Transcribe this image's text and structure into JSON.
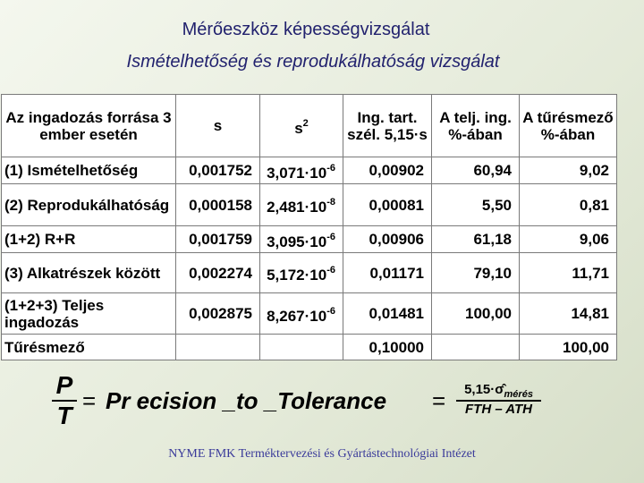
{
  "header": {
    "title": "Mérőeszköz képességvizsgálat",
    "subtitle": "Ismételhetőség és reprodukálhatóság vizsgálat"
  },
  "table": {
    "columns": [
      "Az ingadozás forrása 3 ember esetén",
      "s",
      {
        "base": "s",
        "exp": "2"
      },
      "Ing. tart. szél. 5,15·s",
      "A telj. ing. %-ában",
      "A tűrésmező %-ában"
    ],
    "rows": [
      [
        "(1) Ismételhetőség",
        "0,001752",
        {
          "base": "3,071·10",
          "exp": "-6"
        },
        "0,00902",
        "60,94",
        "9,02"
      ],
      [
        "(2) Reprodukálhatóság",
        "0,000158",
        {
          "base": "2,481·10",
          "exp": "-8"
        },
        "0,00081",
        "5,50",
        "0,81"
      ],
      [
        "(1+2) R+R",
        "0,001759",
        {
          "base": "3,095·10",
          "exp": "-6"
        },
        "0,00906",
        "61,18",
        "9,06"
      ],
      [
        "(3) Alkatrészek között",
        "0,002274",
        {
          "base": "5,172·10",
          "exp": "-6"
        },
        "0,01171",
        "79,10",
        "11,71"
      ],
      [
        "(1+2+3) Teljes ingadozás",
        "0,002875",
        {
          "base": "8,267·10",
          "exp": "-6"
        },
        "0,01481",
        "100,00",
        "14,81"
      ],
      [
        "Tűrésmező",
        null,
        null,
        "0,10000",
        null,
        "100,00"
      ]
    ]
  },
  "formula": {
    "lhs_numerator": "P",
    "lhs_denominator": "T",
    "equals": "=",
    "middle": "Pr ecision _to _Tolerance",
    "rhs_numerator": "5,15·σ̂",
    "rhs_subscript": "mérés",
    "rhs_denominator": "FTH – ATH"
  },
  "footer": "NYME FMK Terméktervezési és Gyártástechnológiai Intézet"
}
